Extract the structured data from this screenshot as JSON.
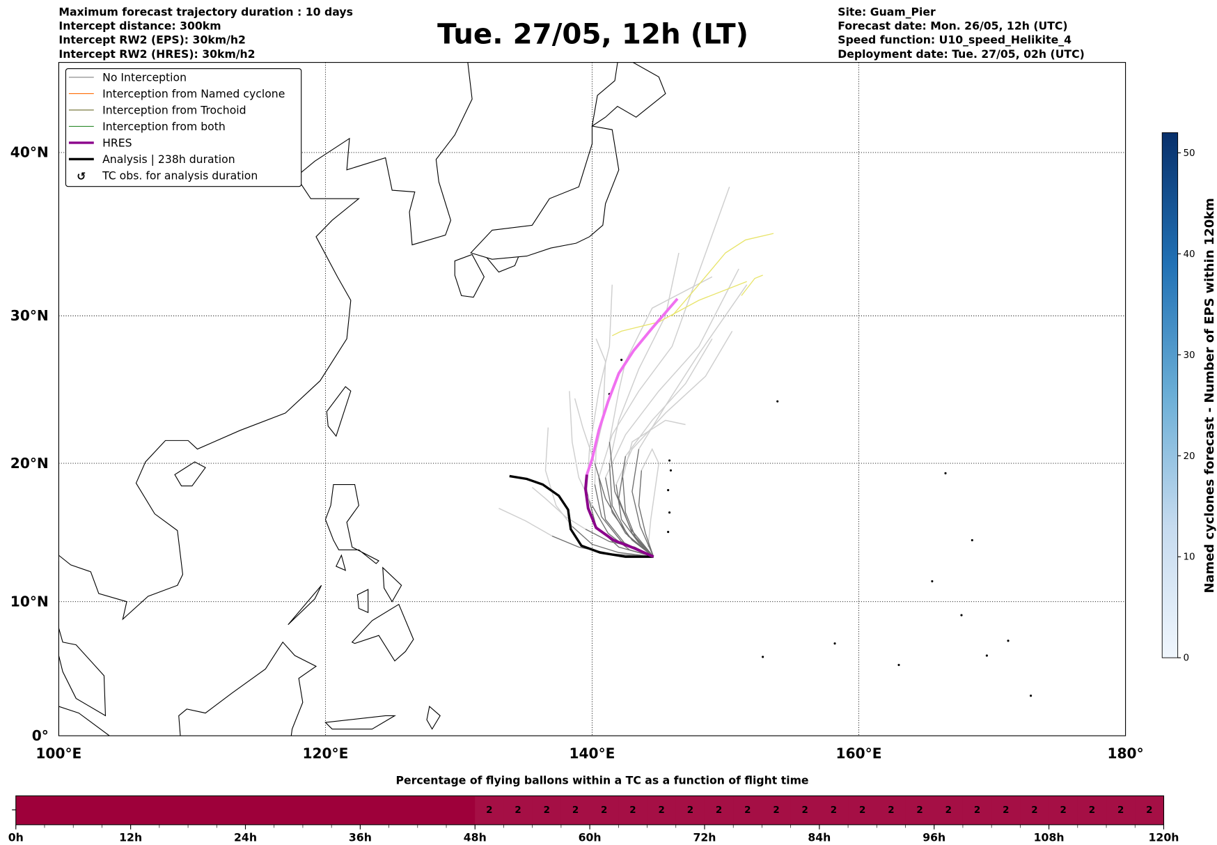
{
  "header": {
    "left": [
      "Maximum forecast trajectory duration : 10 days",
      "Intercept distance: 300km",
      "Intercept RW2 (EPS):  30km/h2",
      "Intercept RW2 (HRES): 30km/h2"
    ],
    "title": "Tue. 27/05, 12h (LT)",
    "right": [
      "Site: Guam_Pier",
      "Forecast date: Mon. 26/05, 12h (UTC)",
      "Speed function: U10_speed_Helikite_4",
      "Deployment date: Tue. 27/05, 02h (UTC)"
    ]
  },
  "legend": [
    {
      "label": "No Interception",
      "color": "#808080"
    },
    {
      "label": "Interception from Named cyclone",
      "color": "#ff6a00"
    },
    {
      "label": "Interception from Trochoid",
      "color": "#6b6b2a"
    },
    {
      "label": "Interception from both",
      "color": "#2e8b2e"
    },
    {
      "label": "HRES",
      "color": "#8b008b"
    },
    {
      "label": "Analysis | 238h duration",
      "color": "#000000"
    },
    {
      "label": "TC obs. for analysis duration",
      "icon": "cyclone-symbol"
    }
  ],
  "chart_data": [
    {
      "type": "line",
      "title": "Tue. 27/05, 12h (LT)",
      "projection": "mercator",
      "xlim": [
        100,
        180
      ],
      "ylim": [
        0,
        45.5
      ],
      "x_ticks": [
        100,
        120,
        140,
        160,
        180
      ],
      "x_tick_labels": [
        "100°E",
        "120°E",
        "140°E",
        "160°E",
        "180°"
      ],
      "y_ticks": [
        0,
        10,
        20,
        30,
        40
      ],
      "y_tick_labels": [
        "0°",
        "10°N",
        "20°N",
        "30°N",
        "40°N"
      ],
      "grid": true,
      "legend_position": "top-left",
      "site": {
        "lon": 144.65,
        "lat": 13.3
      },
      "hres": [
        [
          144.6,
          13.3
        ],
        [
          143.2,
          13.9
        ],
        [
          141.6,
          14.5
        ],
        [
          140.3,
          15.4
        ],
        [
          139.7,
          16.8
        ],
        [
          139.5,
          18.2
        ],
        [
          139.6,
          19.2
        ],
        [
          140,
          20.3
        ],
        [
          140.5,
          22.3
        ],
        [
          141.2,
          24.3
        ],
        [
          142,
          26.2
        ],
        [
          143.1,
          27.7
        ],
        [
          144.5,
          29.2
        ],
        [
          146.4,
          31.1
        ]
      ],
      "hres_dark_until_index": 6,
      "analysis": [
        [
          144.6,
          13.3
        ],
        [
          142.5,
          13.3
        ],
        [
          140.6,
          13.6
        ],
        [
          139.2,
          14.1
        ],
        [
          138.4,
          15.3
        ],
        [
          138.2,
          16.7
        ],
        [
          137.5,
          17.7
        ],
        [
          136.3,
          18.5
        ],
        [
          135.1,
          18.9
        ],
        [
          133.8,
          19.1
        ]
      ],
      "ensemble": [
        [
          [
            144.6,
            13.3
          ],
          [
            142,
            14
          ],
          [
            140.3,
            15.5
          ],
          [
            139.6,
            18
          ],
          [
            139.8,
            21
          ],
          [
            140.5,
            25
          ],
          [
            141.3,
            28
          ],
          [
            141.5,
            32
          ]
        ],
        [
          [
            144.6,
            13.3
          ],
          [
            142.5,
            14.2
          ],
          [
            141,
            16
          ],
          [
            140.5,
            19
          ],
          [
            141.5,
            22
          ],
          [
            143.5,
            25
          ],
          [
            146,
            28
          ],
          [
            150.3,
            38
          ]
        ],
        [
          [
            144.6,
            13.3
          ],
          [
            143,
            14.5
          ],
          [
            141.5,
            16.5
          ],
          [
            141,
            19
          ],
          [
            142.5,
            22
          ],
          [
            145,
            25
          ],
          [
            148,
            28
          ],
          [
            151,
            33
          ]
        ],
        [
          [
            144.6,
            13.3
          ],
          [
            143.5,
            14.3
          ],
          [
            142.2,
            16
          ],
          [
            141.8,
            18.5
          ],
          [
            143,
            21
          ],
          [
            145.5,
            23.5
          ],
          [
            148.5,
            26
          ],
          [
            150.5,
            29
          ]
        ],
        [
          [
            144.6,
            13.3
          ],
          [
            142.8,
            13.8
          ],
          [
            141.2,
            15
          ],
          [
            140,
            17
          ],
          [
            139,
            19
          ],
          [
            138.5,
            21.5
          ],
          [
            138.3,
            25
          ]
        ],
        [
          [
            144.6,
            13.3
          ],
          [
            142,
            13.6
          ],
          [
            140,
            14.2
          ],
          [
            138.5,
            15.5
          ],
          [
            137.3,
            17
          ],
          [
            136.5,
            19.5
          ],
          [
            136.7,
            22.5
          ]
        ],
        [
          [
            144.6,
            13.3
          ],
          [
            141.5,
            13.5
          ],
          [
            139,
            14
          ],
          [
            137,
            14.8
          ],
          [
            135,
            15.9
          ],
          [
            133,
            16.8
          ]
        ],
        [
          [
            144.6,
            13.3
          ],
          [
            143.3,
            14.6
          ],
          [
            142.5,
            16.5
          ],
          [
            142.3,
            19
          ],
          [
            143,
            21.5
          ],
          [
            145.5,
            23
          ],
          [
            147,
            22.7
          ]
        ],
        [
          [
            144.6,
            13.3
          ],
          [
            142.7,
            14.8
          ],
          [
            141.5,
            17
          ],
          [
            141.3,
            20
          ],
          [
            142,
            23
          ],
          [
            143.5,
            26.5
          ],
          [
            145.5,
            30
          ],
          [
            146.5,
            34
          ]
        ],
        [
          [
            144.6,
            13.3
          ],
          [
            143,
            15
          ],
          [
            142,
            17.5
          ],
          [
            142.5,
            20.5
          ],
          [
            144.5,
            23
          ],
          [
            147,
            25.5
          ],
          [
            149,
            28.5
          ]
        ],
        [
          [
            144.6,
            13.3
          ],
          [
            144,
            15
          ],
          [
            143.5,
            17
          ],
          [
            143.7,
            19.5
          ],
          [
            144.5,
            21
          ],
          [
            145,
            20
          ],
          [
            144.4,
            16
          ],
          [
            144.2,
            14
          ]
        ],
        [
          [
            144.6,
            13.3
          ],
          [
            142.2,
            14.4
          ],
          [
            140.7,
            16.2
          ],
          [
            140.2,
            18.5
          ],
          [
            140.3,
            21
          ],
          [
            140.8,
            23
          ],
          [
            141,
            27
          ],
          [
            140.3,
            28.5
          ]
        ],
        [
          [
            144.6,
            13.3
          ],
          [
            142.5,
            15
          ],
          [
            141,
            17.5
          ],
          [
            140.2,
            20
          ],
          [
            139.3,
            22.5
          ],
          [
            138.7,
            24.5
          ]
        ],
        [
          [
            144.6,
            13.3
          ],
          [
            143.6,
            15.5
          ],
          [
            143,
            18
          ],
          [
            143.5,
            21
          ],
          [
            145.5,
            24
          ],
          [
            148,
            27.5
          ],
          [
            151.6,
            32
          ]
        ],
        [
          [
            144.6,
            13.3
          ],
          [
            142.9,
            15.3
          ],
          [
            141.7,
            18
          ],
          [
            141.3,
            21.5
          ],
          [
            142,
            25
          ],
          [
            142.5,
            27
          ],
          [
            144.5,
            30.5
          ],
          [
            149,
            32.5
          ]
        ],
        [
          [
            144.6,
            13.3
          ],
          [
            143.2,
            14
          ],
          [
            141.3,
            14.4
          ],
          [
            139.5,
            15.3
          ],
          [
            138,
            16.2
          ],
          [
            136.5,
            17.5
          ],
          [
            135.5,
            18.3
          ]
        ]
      ],
      "trochoid_tracks": [
        [
          [
            141.5,
            28.7
          ],
          [
            142.2,
            29
          ],
          [
            145,
            29.6
          ],
          [
            148,
            31
          ],
          [
            151.6,
            32.2
          ]
        ],
        [
          [
            146,
            30
          ],
          [
            148,
            32
          ],
          [
            150,
            34
          ],
          [
            151.5,
            34.8
          ],
          [
            153.6,
            35.2
          ]
        ],
        [
          [
            151.2,
            31.3
          ],
          [
            152.2,
            32.4
          ],
          [
            152.8,
            32.6
          ]
        ]
      ],
      "colorbar": {
        "label": "Named cyclones forecast - Number of EPS within 120km",
        "range": [
          0,
          52
        ],
        "ticks": [
          0,
          10,
          20,
          30,
          40,
          50
        ],
        "colormap": "Blues"
      }
    },
    {
      "type": "heatmap",
      "title": "Percentage of flying ballons within a TC as a function of flight time",
      "x_range_hours": [
        0,
        120
      ],
      "x_tick_labels": [
        "0h",
        "12h",
        "24h",
        "36h",
        "48h",
        "60h",
        "72h",
        "84h",
        "96h",
        "108h",
        "120h"
      ],
      "bin_hours": 3,
      "values": [
        0,
        0,
        0,
        0,
        0,
        0,
        0,
        0,
        0,
        0,
        0,
        0,
        0,
        0,
        0,
        0,
        2,
        2,
        2,
        2,
        2,
        2,
        2,
        2,
        2,
        2,
        2,
        2,
        2,
        2,
        2,
        2,
        2,
        2,
        2,
        2,
        2,
        2,
        2,
        2
      ],
      "value_labels_from_hour": 48,
      "colors": {
        "zero": "#9e003a",
        "two": "#a50f45"
      }
    }
  ]
}
